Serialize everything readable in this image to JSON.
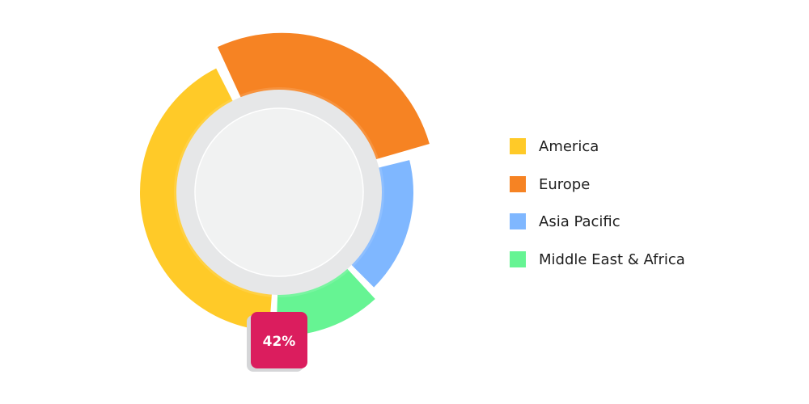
{
  "chart_data": {
    "type": "pie",
    "variant": "donut",
    "categories": [
      "America",
      "Europe",
      "Asia Pacific",
      "Middle East & Africa"
    ],
    "colors": [
      "#FFCA28",
      "#F68323",
      "#7FB7FF",
      "#66F493"
    ],
    "values": [
      42,
      28,
      17,
      13
    ],
    "highlight": {
      "category": "America",
      "label": "42%",
      "color": "#DB1D5E"
    },
    "legend_position": "right"
  },
  "legend": {
    "items": [
      {
        "label": "America",
        "color": "#FFCA28"
      },
      {
        "label": "Europe",
        "color": "#F68323"
      },
      {
        "label": "Asia Pacific",
        "color": "#7FB7FF"
      },
      {
        "label": "Middle East & Africa",
        "color": "#66F493"
      }
    ]
  }
}
